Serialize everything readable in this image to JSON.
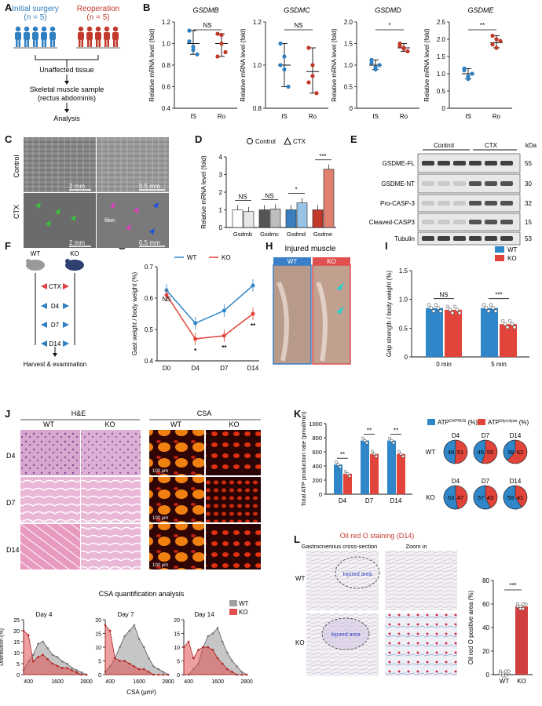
{
  "panels": {
    "A": "A",
    "B": "B",
    "C": "C",
    "D": "D",
    "E": "E",
    "F": "F",
    "G": "G",
    "H": "H",
    "I": "I",
    "J": "J",
    "K": "K",
    "L": "L"
  },
  "panelA": {
    "group1_title": "Initial surgery",
    "group1_n": "(n = 5)",
    "group2_title": "Reoperation",
    "group2_n": "(n = 5)",
    "step1": "Unaffected tissue",
    "step2a": "Skeletal muscle sample",
    "step2b": "(rectus abdominis)",
    "step3": "Analysis",
    "colors": {
      "is": "#2f7fc1",
      "ro": "#c0392b"
    }
  },
  "chart_data": [
    {
      "id": "B-GSDMB",
      "type": "scatter",
      "title": "GSDMB",
      "ylabel": "Relative mRNA level (fold)",
      "ylim": [
        0.4,
        1.2
      ],
      "yticks": [
        "0.4",
        "0.6",
        "0.8",
        "1.0",
        "1.2"
      ],
      "categories": [
        "IS",
        "Ro"
      ],
      "significance": "NS",
      "series": [
        {
          "name": "IS",
          "values": [
            1.12,
            0.97,
            0.9,
            1.02,
            0.94
          ],
          "mean": 1.0
        },
        {
          "name": "Ro",
          "values": [
            1.09,
            1.0,
            0.92,
            0.88,
            1.08
          ],
          "mean": 1.0
        }
      ]
    },
    {
      "id": "B-GSDMC",
      "type": "scatter",
      "title": "GSDMC",
      "ylabel": "Relative mRNA level (fold)",
      "ylim": [
        0.8,
        1.2
      ],
      "yticks": [
        "0.8",
        "1.0",
        "1.2"
      ],
      "categories": [
        "IS",
        "Ro"
      ],
      "significance": "NS",
      "series": [
        {
          "name": "IS",
          "values": [
            1.1,
            1.04,
            0.9,
            1.0,
            0.98
          ],
          "mean": 1.0
        },
        {
          "name": "Ro",
          "values": [
            1.08,
            1.0,
            0.87,
            0.92,
            0.95
          ],
          "mean": 0.97
        }
      ]
    },
    {
      "id": "B-GSDMD",
      "type": "scatter",
      "title": "GSDMD",
      "ylabel": "Relative mRNA level (fold)",
      "ylim": [
        0,
        2.0
      ],
      "yticks": [
        "0",
        "0.5",
        "1.0",
        "1.5",
        "2.0"
      ],
      "categories": [
        "IS",
        "Ro"
      ],
      "significance": "*",
      "series": [
        {
          "name": "IS",
          "values": [
            1.12,
            0.9,
            1.0,
            1.05,
            0.95
          ],
          "mean": 1.0
        },
        {
          "name": "Ro",
          "values": [
            1.5,
            1.4,
            1.32,
            1.45,
            1.38
          ],
          "mean": 1.4
        }
      ]
    },
    {
      "id": "B-GSDME",
      "type": "scatter",
      "title": "GSDME",
      "ylabel": "Relative mRNA level (fold)",
      "ylim": [
        0,
        2.5
      ],
      "yticks": [
        "0",
        "0.5",
        "1.0",
        "1.5",
        "2.0",
        "2.5"
      ],
      "categories": [
        "IS",
        "Ro"
      ],
      "significance": "**",
      "series": [
        {
          "name": "IS",
          "values": [
            1.15,
            0.85,
            1.0,
            1.1,
            0.92
          ],
          "mean": 1.0
        },
        {
          "name": "Ro",
          "values": [
            2.1,
            1.75,
            1.95,
            1.85,
            2.0
          ],
          "mean": 1.9
        }
      ]
    },
    {
      "id": "D",
      "type": "bar",
      "ylabel": "Relative mRNA level (fold)",
      "ylim": [
        0,
        4
      ],
      "yticks": [
        "0",
        "1",
        "2",
        "3",
        "4"
      ],
      "categories": [
        "Gsdmb",
        "Gsdmc",
        "Gsdmd",
        "Gsdme"
      ],
      "legend": [
        "Control",
        "CTX"
      ],
      "significance": [
        "NS",
        "NS",
        "*",
        "***"
      ],
      "series": [
        {
          "name": "Control",
          "values": [
            1.0,
            1.0,
            1.0,
            1.0
          ]
        },
        {
          "name": "CTX",
          "values": [
            0.9,
            1.05,
            1.4,
            3.3
          ]
        }
      ]
    },
    {
      "id": "G",
      "type": "line",
      "ylabel": "Gast weight / body weight (%)",
      "ylim": [
        0.4,
        0.7
      ],
      "yticks": [
        "0.4",
        "0.5",
        "0.6",
        "0.7"
      ],
      "categories": [
        "D0",
        "D4",
        "D7",
        "D14"
      ],
      "significance": [
        "NS",
        "*",
        "**",
        "**"
      ],
      "series": [
        {
          "name": "WT",
          "values": [
            0.625,
            0.52,
            0.56,
            0.64
          ],
          "color": "#2f86c9"
        },
        {
          "name": "KO",
          "values": [
            0.61,
            0.47,
            0.48,
            0.55
          ],
          "color": "#e0443a"
        }
      ]
    },
    {
      "id": "I",
      "type": "bar",
      "ylabel": "Grip strength / body weight (%)",
      "ylim": [
        0,
        1.5
      ],
      "yticks": [
        "0",
        "0.5",
        "1.0",
        "1.5"
      ],
      "categories": [
        "0 min",
        "5 min"
      ],
      "significance": [
        "NS",
        "***"
      ],
      "series": [
        {
          "name": "WT",
          "values": [
            0.85,
            0.85
          ],
          "color": "#2f86c9"
        },
        {
          "name": "KO",
          "values": [
            0.82,
            0.57
          ],
          "color": "#e0443a"
        }
      ]
    },
    {
      "id": "J",
      "type": "area",
      "title": "CSA quantification analysis",
      "xlabel": "CSA (μm²)",
      "ylabel": "Distribution (%)",
      "xticks": [
        "400",
        "1600",
        "2800"
      ],
      "legend": [
        "WT",
        "KO"
      ],
      "subplots": [
        {
          "title": "Day 4",
          "ylim": [
            0,
            25
          ],
          "yticks": [
            "0",
            "5",
            "10",
            "15",
            "20",
            "25"
          ],
          "x": [
            200,
            400,
            600,
            800,
            1000,
            1200,
            1400,
            1600,
            1800,
            2000,
            2200,
            2400,
            2600,
            2800
          ],
          "series": [
            {
              "name": "WT",
              "values": [
                2,
                6,
                9,
                14,
                15,
                12,
                9,
                8,
                6,
                5,
                3,
                2,
                1,
                0
              ]
            },
            {
              "name": "KO",
              "values": [
                20,
                18,
                6,
                8,
                9,
                7,
                5,
                4,
                3,
                3,
                2,
                1,
                0,
                0
              ]
            }
          ]
        },
        {
          "title": "Day 7",
          "ylim": [
            0,
            20
          ],
          "yticks": [
            "0",
            "5",
            "10",
            "15",
            "20"
          ],
          "x": [
            200,
            400,
            600,
            800,
            1000,
            1200,
            1400,
            1600,
            1800,
            2000,
            2200,
            2400,
            2600,
            2800
          ],
          "series": [
            {
              "name": "WT",
              "values": [
                1,
                3,
                6,
                10,
                14,
                16,
                18,
                13,
                10,
                6,
                3,
                2,
                1,
                0
              ]
            },
            {
              "name": "KO",
              "values": [
                18,
                16,
                6,
                5,
                5,
                4,
                3,
                2,
                2,
                1,
                0,
                0,
                0,
                0
              ]
            }
          ]
        },
        {
          "title": "Day 14",
          "ylim": [
            0,
            20
          ],
          "yticks": [
            "0",
            "5",
            "10",
            "15",
            "20"
          ],
          "x": [
            200,
            400,
            600,
            800,
            1000,
            1200,
            1400,
            1600,
            1800,
            2000,
            2200,
            2400,
            2600,
            2800
          ],
          "series": [
            {
              "name": "WT",
              "values": [
                0,
                0,
                2,
                4,
                10,
                14,
                15,
                17,
                12,
                8,
                5,
                3,
                1,
                0
              ]
            },
            {
              "name": "KO",
              "values": [
                10,
                12,
                6,
                9,
                10,
                10,
                9,
                6,
                4,
                2,
                1,
                0,
                0,
                0
              ]
            }
          ]
        }
      ]
    },
    {
      "id": "K",
      "type": "scatter",
      "ylabel": "Total ATP production rate (pmol/min)",
      "ylim": [
        0,
        1000
      ],
      "yticks": [
        "0",
        "200",
        "400",
        "600",
        "800",
        "1000"
      ],
      "categories": [
        "D4",
        "D7",
        "D14"
      ],
      "significance": [
        "**",
        "**",
        "**"
      ],
      "series": [
        {
          "name": "WT",
          "values": [
            420,
            760,
            760
          ],
          "color": "#2f86c9"
        },
        {
          "name": "KO",
          "values": [
            290,
            570,
            570
          ],
          "color": "#e0443a"
        }
      ]
    },
    {
      "id": "K-pies",
      "type": "pie",
      "legend": [
        "ATP",
        "ATP"
      ],
      "legend_sup": [
        "OXPHOS",
        "Glycolysis"
      ],
      "legend_suffix": [
        "(%)",
        "(%)"
      ],
      "rows": [
        {
          "label": "WT",
          "slices": [
            {
              "day": "D4",
              "oxphos": 49,
              "glycolysis": 51
            },
            {
              "day": "D7",
              "oxphos": 45,
              "glycolysis": 55
            },
            {
              "day": "D14",
              "oxphos": 38,
              "glycolysis": 62
            }
          ]
        },
        {
          "label": "KO",
          "slices": [
            {
              "day": "D4",
              "oxphos": 53,
              "glycolysis": 47
            },
            {
              "day": "D7",
              "oxphos": 57,
              "glycolysis": 43
            },
            {
              "day": "D14",
              "oxphos": 59,
              "glycolysis": 41
            }
          ]
        }
      ]
    },
    {
      "id": "L",
      "type": "bar",
      "ylabel": "Oil red O positive area (%)",
      "ylim": [
        0,
        80
      ],
      "yticks": [
        "0",
        "20",
        "40",
        "60",
        "80"
      ],
      "categories": [
        "WT",
        "KO"
      ],
      "significance": "***",
      "series": [
        {
          "name": "Oil red O",
          "values": [
            1,
            58
          ]
        }
      ]
    }
  ],
  "panelC": {
    "row1": "Control",
    "row2": "CTX",
    "scale1": "2 mm",
    "scale2": "0.5 mm",
    "scale3": "2 mm",
    "scale4": "0.5 mm",
    "fiber": "fiber"
  },
  "panelE": {
    "col1": "Control",
    "col2": "CTX",
    "unit": "kDa",
    "rows": [
      {
        "label": "GSDME-FL",
        "kda": "55"
      },
      {
        "label": "GSDME-NT",
        "kda": "30"
      },
      {
        "label": "Pro-CASP-3",
        "kda": "32"
      },
      {
        "label": "Cleaved-CASP3",
        "kda": "15"
      },
      {
        "label": "Tubulin",
        "kda": "53"
      }
    ]
  },
  "panelF": {
    "wt": "WT",
    "ko": "KO",
    "steps": [
      "CTX",
      "D4",
      "D7",
      "D14"
    ],
    "footer": "Harvest & examination"
  },
  "panelH": {
    "title": "Injured muscle",
    "wt": "WT",
    "ko": "KO"
  },
  "panelJ": {
    "he": "H&E",
    "csa": "CSA",
    "wt": "WT",
    "ko": "KO",
    "days": [
      "D4",
      "D7",
      "D14"
    ],
    "scale": "100 μm"
  },
  "panelL": {
    "title": "Oil red O staining (D14)",
    "col1": "Gastrocnemius cross-section",
    "col2": "Zoom in",
    "wt": "WT",
    "ko": "KO",
    "area": "Injured area"
  }
}
